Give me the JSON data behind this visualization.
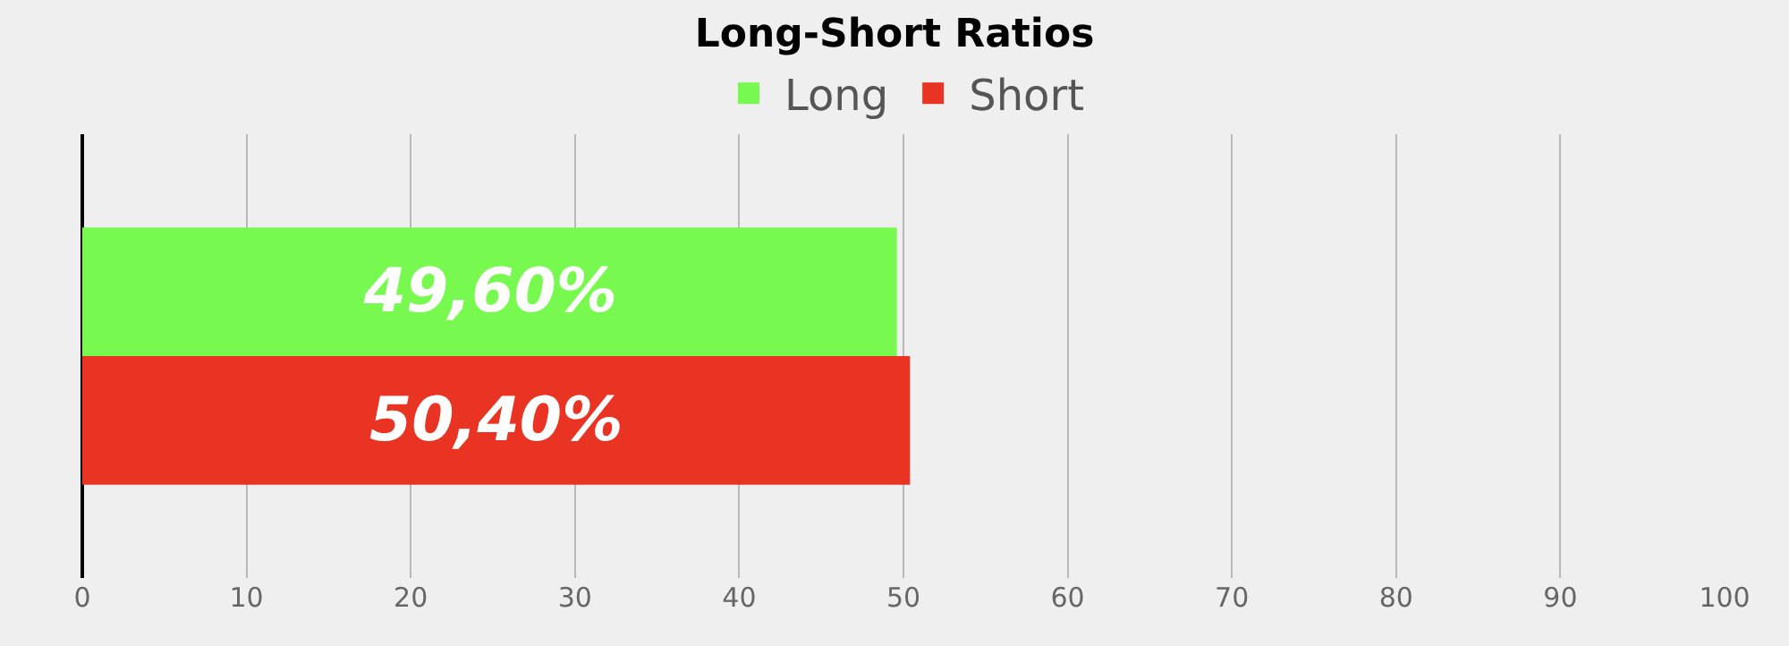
{
  "chart_data": {
    "type": "bar",
    "orientation": "horizontal",
    "title": "Long-Short Ratios",
    "categories": [
      null
    ],
    "series": [
      {
        "name": "Long",
        "color": "#77f94f",
        "values": [
          49.6
        ],
        "value_labels": [
          "49,60%"
        ]
      },
      {
        "name": "Short",
        "color": "#e93323",
        "values": [
          50.4
        ],
        "value_labels": [
          "50,40%"
        ]
      }
    ],
    "xlim": [
      0,
      100
    ],
    "xticks": [
      0,
      10,
      20,
      30,
      40,
      50,
      60,
      70,
      80,
      90,
      100
    ],
    "grid": "x",
    "legend": "top",
    "tick_labels": "x"
  }
}
